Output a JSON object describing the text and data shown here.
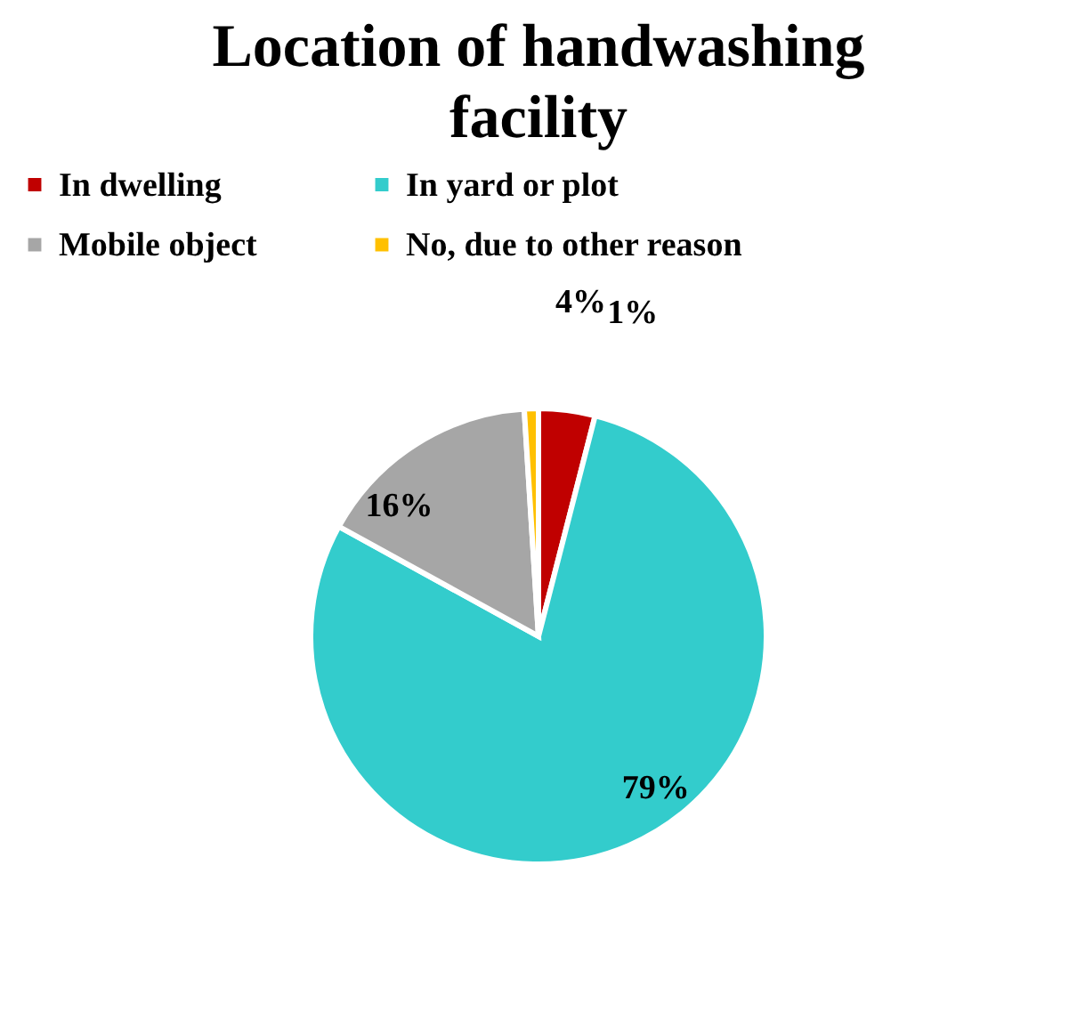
{
  "chart_data": {
    "type": "pie",
    "title": "Location of handwashing facility",
    "categories": [
      "In dwelling",
      "In yard or plot",
      "Mobile object",
      "No, due to other reason"
    ],
    "values": [
      4,
      79,
      16,
      1
    ],
    "colors": [
      "#c00000",
      "#33cccc",
      "#a6a6a6",
      "#ffc000"
    ],
    "value_labels": [
      "4%",
      "79%",
      "16%",
      "1%"
    ],
    "legend": "top"
  }
}
